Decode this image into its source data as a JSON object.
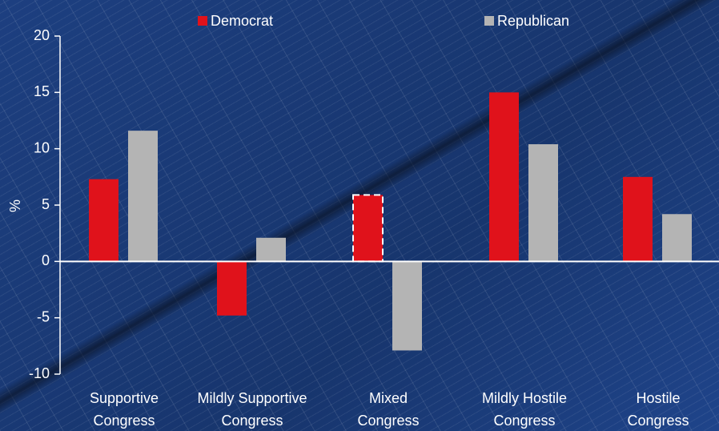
{
  "chart_data": {
    "type": "bar",
    "categories": [
      [
        "Supportive",
        "Congress"
      ],
      [
        "Mildly Supportive",
        "Congress"
      ],
      [
        "Mixed",
        "Congress"
      ],
      [
        "Mildly Hostile",
        "Congress"
      ],
      [
        "Hostile",
        "Congress"
      ]
    ],
    "series": [
      {
        "name": "Democrat",
        "color": "#e0121b",
        "values": [
          7.3,
          -4.8,
          5.9,
          15.0,
          7.5
        ]
      },
      {
        "name": "Republican",
        "color": "#b4b4b4",
        "values": [
          11.6,
          2.1,
          -7.9,
          10.4,
          4.2
        ]
      }
    ],
    "y_label": "%",
    "ylim": [
      -10,
      20
    ],
    "yticks": [
      -10,
      -5,
      0,
      5,
      10,
      15,
      20
    ],
    "highlight": {
      "series": 0,
      "index": 2
    }
  }
}
